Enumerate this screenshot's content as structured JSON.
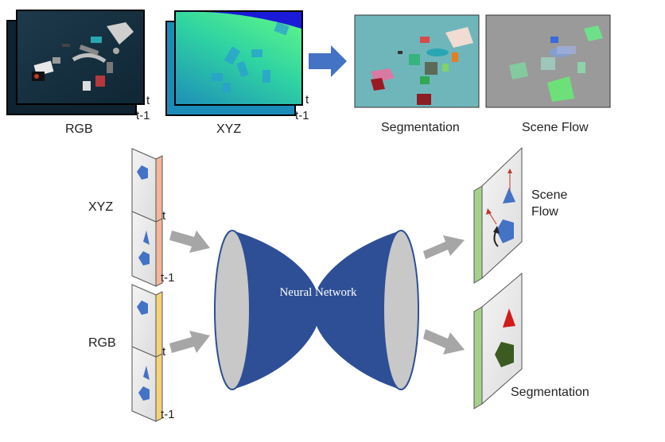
{
  "top_row": {
    "rgb_label": "RGB",
    "xyz_label": "XYZ",
    "segmentation_label": "Segmentation",
    "scene_flow_label": "Scene Flow",
    "frame_t": "t",
    "frame_t_minus_1": "t-1"
  },
  "network": {
    "title": "Neural Network"
  },
  "inputs": {
    "xyz_label": "XYZ",
    "rgb_label": "RGB",
    "frame_t": "t",
    "frame_t_minus_1": "t-1"
  },
  "outputs": {
    "scene_flow_label_line1": "Scene",
    "scene_flow_label_line2": "Flow",
    "segmentation_label": "Segmentation"
  },
  "colors": {
    "network_blue": "#2e4f95",
    "arrow_gray": "#a6a6a6",
    "panel_gray": "#bdbdbd",
    "xyz_edge": "#f2b69a",
    "rgb_edge": "#f5d27a",
    "output_edge": "#a8d08d",
    "flow_arrow_blue": "#4472c4"
  }
}
